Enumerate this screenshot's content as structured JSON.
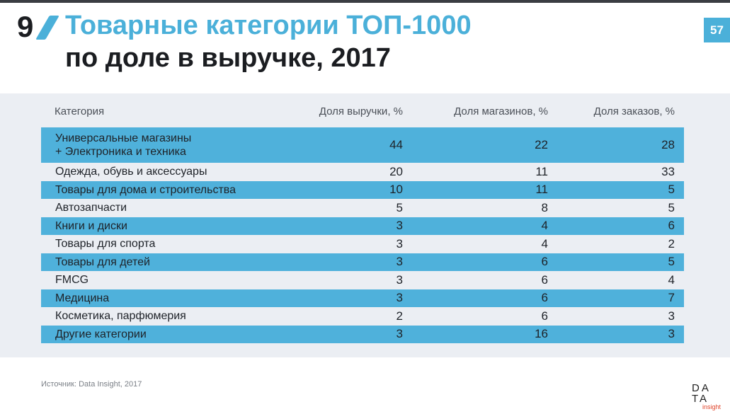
{
  "header": {
    "slide_number": "9",
    "title_line1": "Товарные категории ТОП-1000",
    "title_line2": "по доле в выручке, 2017",
    "page_badge": "57",
    "accent_color": "#4bb0d9"
  },
  "table": {
    "columns": [
      "Категория",
      "Доля выручки, %",
      "Доля магазинов, %",
      "Доля заказов, %"
    ],
    "rows": [
      {
        "category": [
          "Универсальные магазины",
          "+ Электроника и техника"
        ],
        "revenue": "44",
        "shops": "22",
        "orders": "28"
      },
      {
        "category": [
          "Одежда, обувь и аксессуары"
        ],
        "revenue": "20",
        "shops": "11",
        "orders": "33"
      },
      {
        "category": [
          "Товары для дома и строительства"
        ],
        "revenue": "10",
        "shops": "11",
        "orders": "5"
      },
      {
        "category": [
          "Автозапчасти"
        ],
        "revenue": "5",
        "shops": "8",
        "orders": "5"
      },
      {
        "category": [
          "Книги и диски"
        ],
        "revenue": "3",
        "shops": "4",
        "orders": "6"
      },
      {
        "category": [
          "Товары  для спорта"
        ],
        "revenue": "3",
        "shops": "4",
        "orders": "2"
      },
      {
        "category": [
          "Товары для детей"
        ],
        "revenue": "3",
        "shops": "6",
        "orders": "5"
      },
      {
        "category": [
          "FMCG"
        ],
        "revenue": "3",
        "shops": "6",
        "orders": "4"
      },
      {
        "category": [
          "Медицина"
        ],
        "revenue": "3",
        "shops": "6",
        "orders": "7"
      },
      {
        "category": [
          "Косметика, парфюмерия"
        ],
        "revenue": "2",
        "shops": "6",
        "orders": "3"
      },
      {
        "category": [
          "Другие категории"
        ],
        "revenue": "3",
        "shops": "16",
        "orders": "3"
      }
    ],
    "stripe_color": "#4fb1db"
  },
  "footer": {
    "source": "Источник: Data Insight, 2017",
    "logo_line1": "DA",
    "logo_line2": "TA",
    "logo_line3": "insight"
  }
}
